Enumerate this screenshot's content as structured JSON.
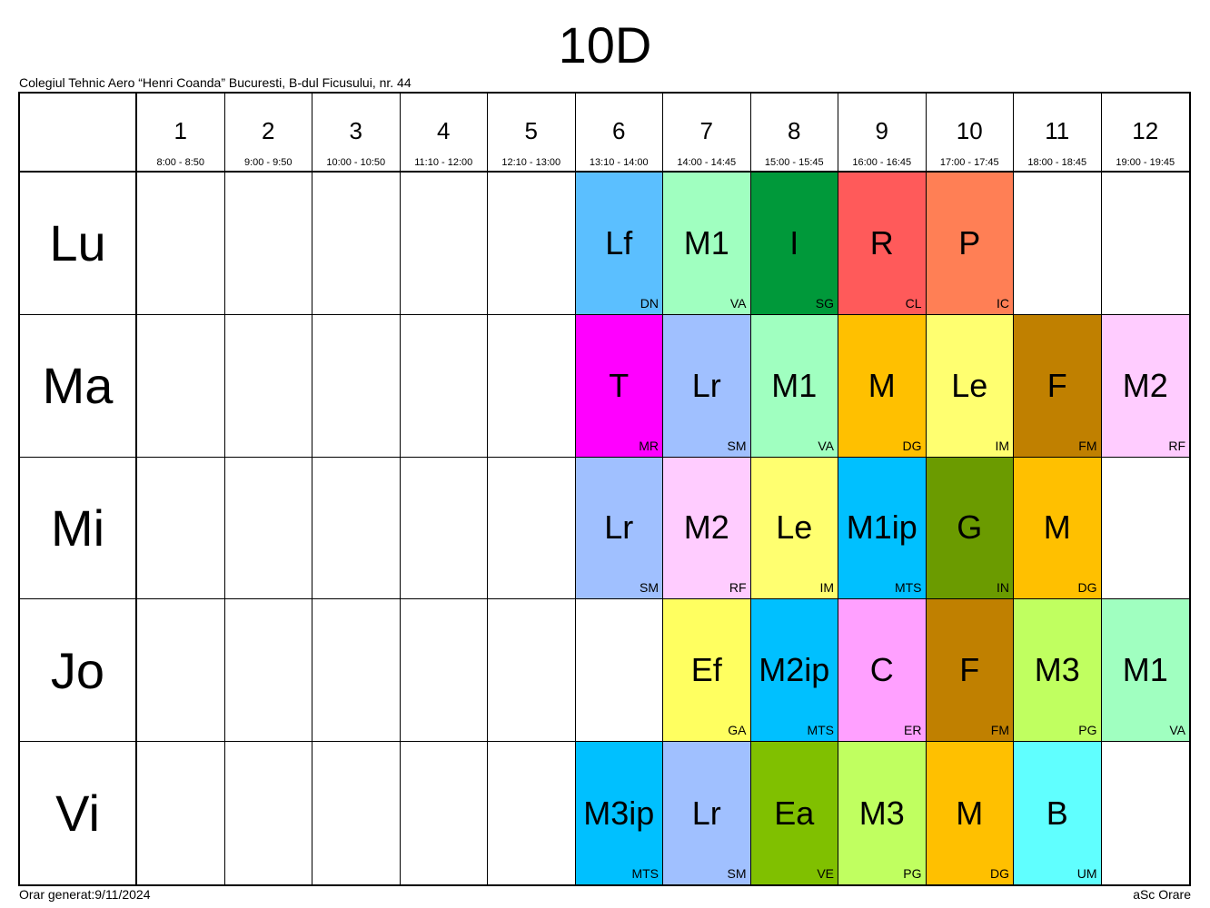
{
  "title": "10D",
  "school": "Colegiul Tehnic Aero “Henri Coanda” Bucuresti, B-dul Ficusului, nr. 44",
  "footer": {
    "generated": "Orar generat:9/11/2024",
    "brand": "aSc Orare"
  },
  "periods": [
    {
      "num": "1",
      "time": "8:00 - 8:50"
    },
    {
      "num": "2",
      "time": "9:00 - 9:50"
    },
    {
      "num": "3",
      "time": "10:00 - 10:50"
    },
    {
      "num": "4",
      "time": "11:10 - 12:00"
    },
    {
      "num": "5",
      "time": "12:10 - 13:00"
    },
    {
      "num": "6",
      "time": "13:10 - 14:00"
    },
    {
      "num": "7",
      "time": "14:00 - 14:45"
    },
    {
      "num": "8",
      "time": "15:00 - 15:45"
    },
    {
      "num": "9",
      "time": "16:00 - 16:45"
    },
    {
      "num": "10",
      "time": "17:00 - 17:45"
    },
    {
      "num": "11",
      "time": "18:00 - 18:45"
    },
    {
      "num": "12",
      "time": "19:00 - 19:45"
    }
  ],
  "days": [
    {
      "name": "Lu",
      "cells": [
        null,
        null,
        null,
        null,
        null,
        {
          "subject": "Lf",
          "teacher": "DN",
          "color": "#5bbfff"
        },
        {
          "subject": "M1",
          "teacher": "VA",
          "color": "#a0ffc0"
        },
        {
          "subject": "I",
          "teacher": "SG",
          "color": "#00993a"
        },
        {
          "subject": "R",
          "teacher": "CL",
          "color": "#ff5a5a"
        },
        {
          "subject": "P",
          "teacher": "IC",
          "color": "#ff7f55"
        },
        null,
        null
      ]
    },
    {
      "name": "Ma",
      "cells": [
        null,
        null,
        null,
        null,
        null,
        {
          "subject": "T",
          "teacher": "MR",
          "color": "#ff00ff"
        },
        {
          "subject": "Lr",
          "teacher": "SM",
          "color": "#a0c0ff"
        },
        {
          "subject": "M1",
          "teacher": "VA",
          "color": "#a0ffc0"
        },
        {
          "subject": "M",
          "teacher": "DG",
          "color": "#ffc000"
        },
        {
          "subject": "Le",
          "teacher": "IM",
          "color": "#ffff70"
        },
        {
          "subject": "F",
          "teacher": "FM",
          "color": "#c08000"
        },
        {
          "subject": "M2",
          "teacher": "RF",
          "color": "#ffccff"
        }
      ]
    },
    {
      "name": "Mi",
      "cells": [
        null,
        null,
        null,
        null,
        null,
        {
          "subject": "Lr",
          "teacher": "SM",
          "color": "#a0c0ff"
        },
        {
          "subject": "M2",
          "teacher": "RF",
          "color": "#ffccff"
        },
        {
          "subject": "Le",
          "teacher": "IM",
          "color": "#ffff70"
        },
        {
          "subject": "M1ip",
          "teacher": "MTS",
          "color": "#00c0ff"
        },
        {
          "subject": "G",
          "teacher": "IN",
          "color": "#6b9b00"
        },
        {
          "subject": "M",
          "teacher": "DG",
          "color": "#ffc000"
        },
        null
      ]
    },
    {
      "name": "Jo",
      "cells": [
        null,
        null,
        null,
        null,
        null,
        null,
        {
          "subject": "Ef",
          "teacher": "GA",
          "color": "#ffff60"
        },
        {
          "subject": "M2ip",
          "teacher": "MTS",
          "color": "#00c0ff"
        },
        {
          "subject": "C",
          "teacher": "ER",
          "color": "#ffa0ff"
        },
        {
          "subject": "F",
          "teacher": "FM",
          "color": "#c08000"
        },
        {
          "subject": "M3",
          "teacher": "PG",
          "color": "#c0ff60"
        },
        {
          "subject": "M1",
          "teacher": "VA",
          "color": "#a0ffc0"
        }
      ]
    },
    {
      "name": "Vi",
      "cells": [
        null,
        null,
        null,
        null,
        null,
        {
          "subject": "M3ip",
          "teacher": "MTS",
          "color": "#00c0ff"
        },
        {
          "subject": "Lr",
          "teacher": "SM",
          "color": "#a0c0ff"
        },
        {
          "subject": "Ea",
          "teacher": "VE",
          "color": "#80c000"
        },
        {
          "subject": "M3",
          "teacher": "PG",
          "color": "#c0ff60"
        },
        {
          "subject": "M",
          "teacher": "DG",
          "color": "#ffc000"
        },
        {
          "subject": "B",
          "teacher": "UM",
          "color": "#60ffff"
        },
        null
      ]
    }
  ]
}
